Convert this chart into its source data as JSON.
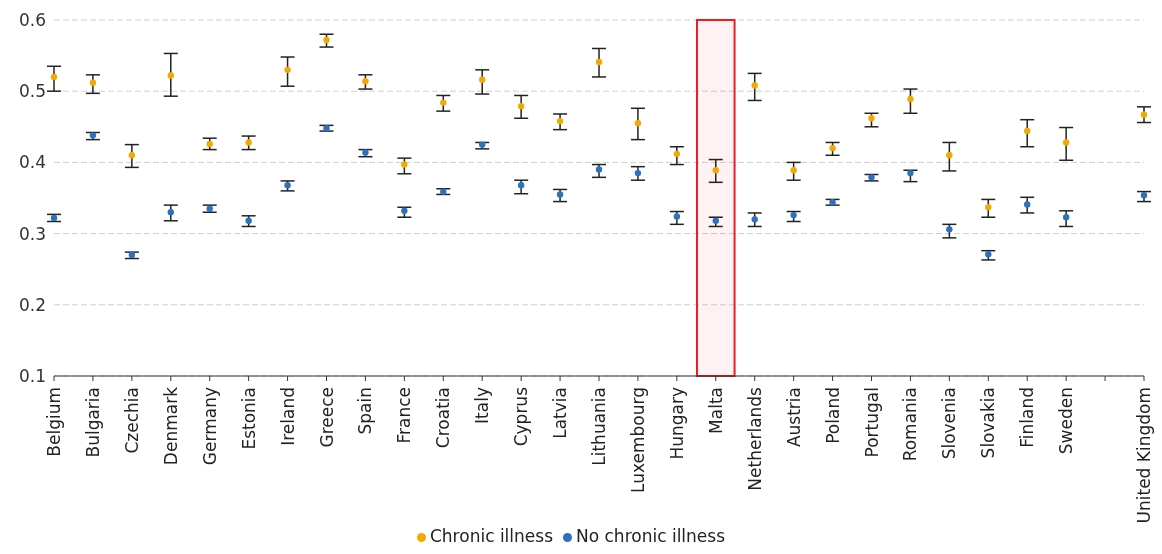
{
  "chart_data": {
    "type": "scatter",
    "categories": [
      "Belgium",
      "Bulgaria",
      "Czechia",
      "Denmark",
      "Germany",
      "Estonia",
      "Ireland",
      "Greece",
      "Spain",
      "France",
      "Croatia",
      "Italy",
      "Cyprus",
      "Latvia",
      "Lithuania",
      "Luxembourg",
      "Hungary",
      "Malta",
      "Netherlands",
      "Austria",
      "Poland",
      "Portugal",
      "Romania",
      "Slovenia",
      "Slovakia",
      "Finland",
      "Sweden",
      null,
      "United Kingdom"
    ],
    "series": [
      {
        "name": "Chronic illness",
        "color": "#f5a800",
        "values": [
          0.52,
          0.512,
          0.41,
          0.522,
          0.426,
          0.428,
          0.53,
          0.572,
          0.514,
          0.397,
          0.484,
          0.516,
          0.479,
          0.458,
          0.541,
          0.455,
          0.412,
          0.389,
          0.508,
          0.389,
          0.42,
          0.462,
          0.489,
          0.41,
          0.337,
          0.444,
          0.428,
          null,
          0.467
        ],
        "errors": [
          [
            0.5,
            0.535
          ],
          [
            0.497,
            0.523
          ],
          [
            0.393,
            0.425
          ],
          [
            0.493,
            0.553
          ],
          [
            0.418,
            0.434
          ],
          [
            0.418,
            0.437
          ],
          [
            0.507,
            0.548
          ],
          [
            0.562,
            0.58
          ],
          [
            0.503,
            0.523
          ],
          [
            0.384,
            0.406
          ],
          [
            0.472,
            0.494
          ],
          [
            0.496,
            0.53
          ],
          [
            0.462,
            0.494
          ],
          [
            0.446,
            0.468
          ],
          [
            0.52,
            0.56
          ],
          [
            0.432,
            0.476
          ],
          [
            0.397,
            0.422
          ],
          [
            0.372,
            0.404
          ],
          [
            0.487,
            0.525
          ],
          [
            0.375,
            0.4
          ],
          [
            0.41,
            0.428
          ],
          [
            0.45,
            0.469
          ],
          [
            0.469,
            0.503
          ],
          [
            0.388,
            0.428
          ],
          [
            0.323,
            0.348
          ],
          [
            0.422,
            0.46
          ],
          [
            0.403,
            0.449
          ],
          null,
          [
            0.456,
            0.478
          ]
        ]
      },
      {
        "name": "No chronic illness",
        "color": "#2e6fc0",
        "values": [
          0.322,
          0.438,
          0.27,
          0.33,
          0.335,
          0.318,
          0.368,
          0.448,
          0.414,
          0.332,
          0.359,
          0.425,
          0.368,
          0.355,
          0.39,
          0.385,
          0.324,
          0.318,
          0.32,
          0.326,
          0.344,
          0.379,
          0.385,
          0.306,
          0.271,
          0.341,
          0.323,
          null,
          0.354
        ],
        "errors": [
          [
            0.317,
            0.327
          ],
          [
            0.432,
            0.442
          ],
          [
            0.265,
            0.274
          ],
          [
            0.318,
            0.34
          ],
          [
            0.33,
            0.34
          ],
          [
            0.31,
            0.325
          ],
          [
            0.36,
            0.374
          ],
          [
            0.444,
            0.452
          ],
          [
            0.408,
            0.418
          ],
          [
            0.323,
            0.337
          ],
          [
            0.355,
            0.363
          ],
          [
            0.419,
            0.428
          ],
          [
            0.356,
            0.375
          ],
          [
            0.345,
            0.362
          ],
          [
            0.379,
            0.397
          ],
          [
            0.375,
            0.394
          ],
          [
            0.313,
            0.331
          ],
          [
            0.31,
            0.323
          ],
          [
            0.31,
            0.329
          ],
          [
            0.317,
            0.331
          ],
          [
            0.34,
            0.348
          ],
          [
            0.374,
            0.383
          ],
          [
            0.373,
            0.389
          ],
          [
            0.294,
            0.313
          ],
          [
            0.263,
            0.276
          ],
          [
            0.329,
            0.351
          ],
          [
            0.31,
            0.332
          ],
          null,
          [
            0.345,
            0.359
          ]
        ]
      }
    ],
    "ylim": [
      0.1,
      0.6
    ],
    "yticks": [
      0.1,
      0.2,
      0.3,
      0.4,
      0.5,
      0.6
    ],
    "grid": "y",
    "legend": "bottom",
    "marker": "circle",
    "bands": [
      {
        "axis": "x",
        "from": "Malta",
        "to": "Malta",
        "color": "#ee1c25"
      }
    ]
  }
}
